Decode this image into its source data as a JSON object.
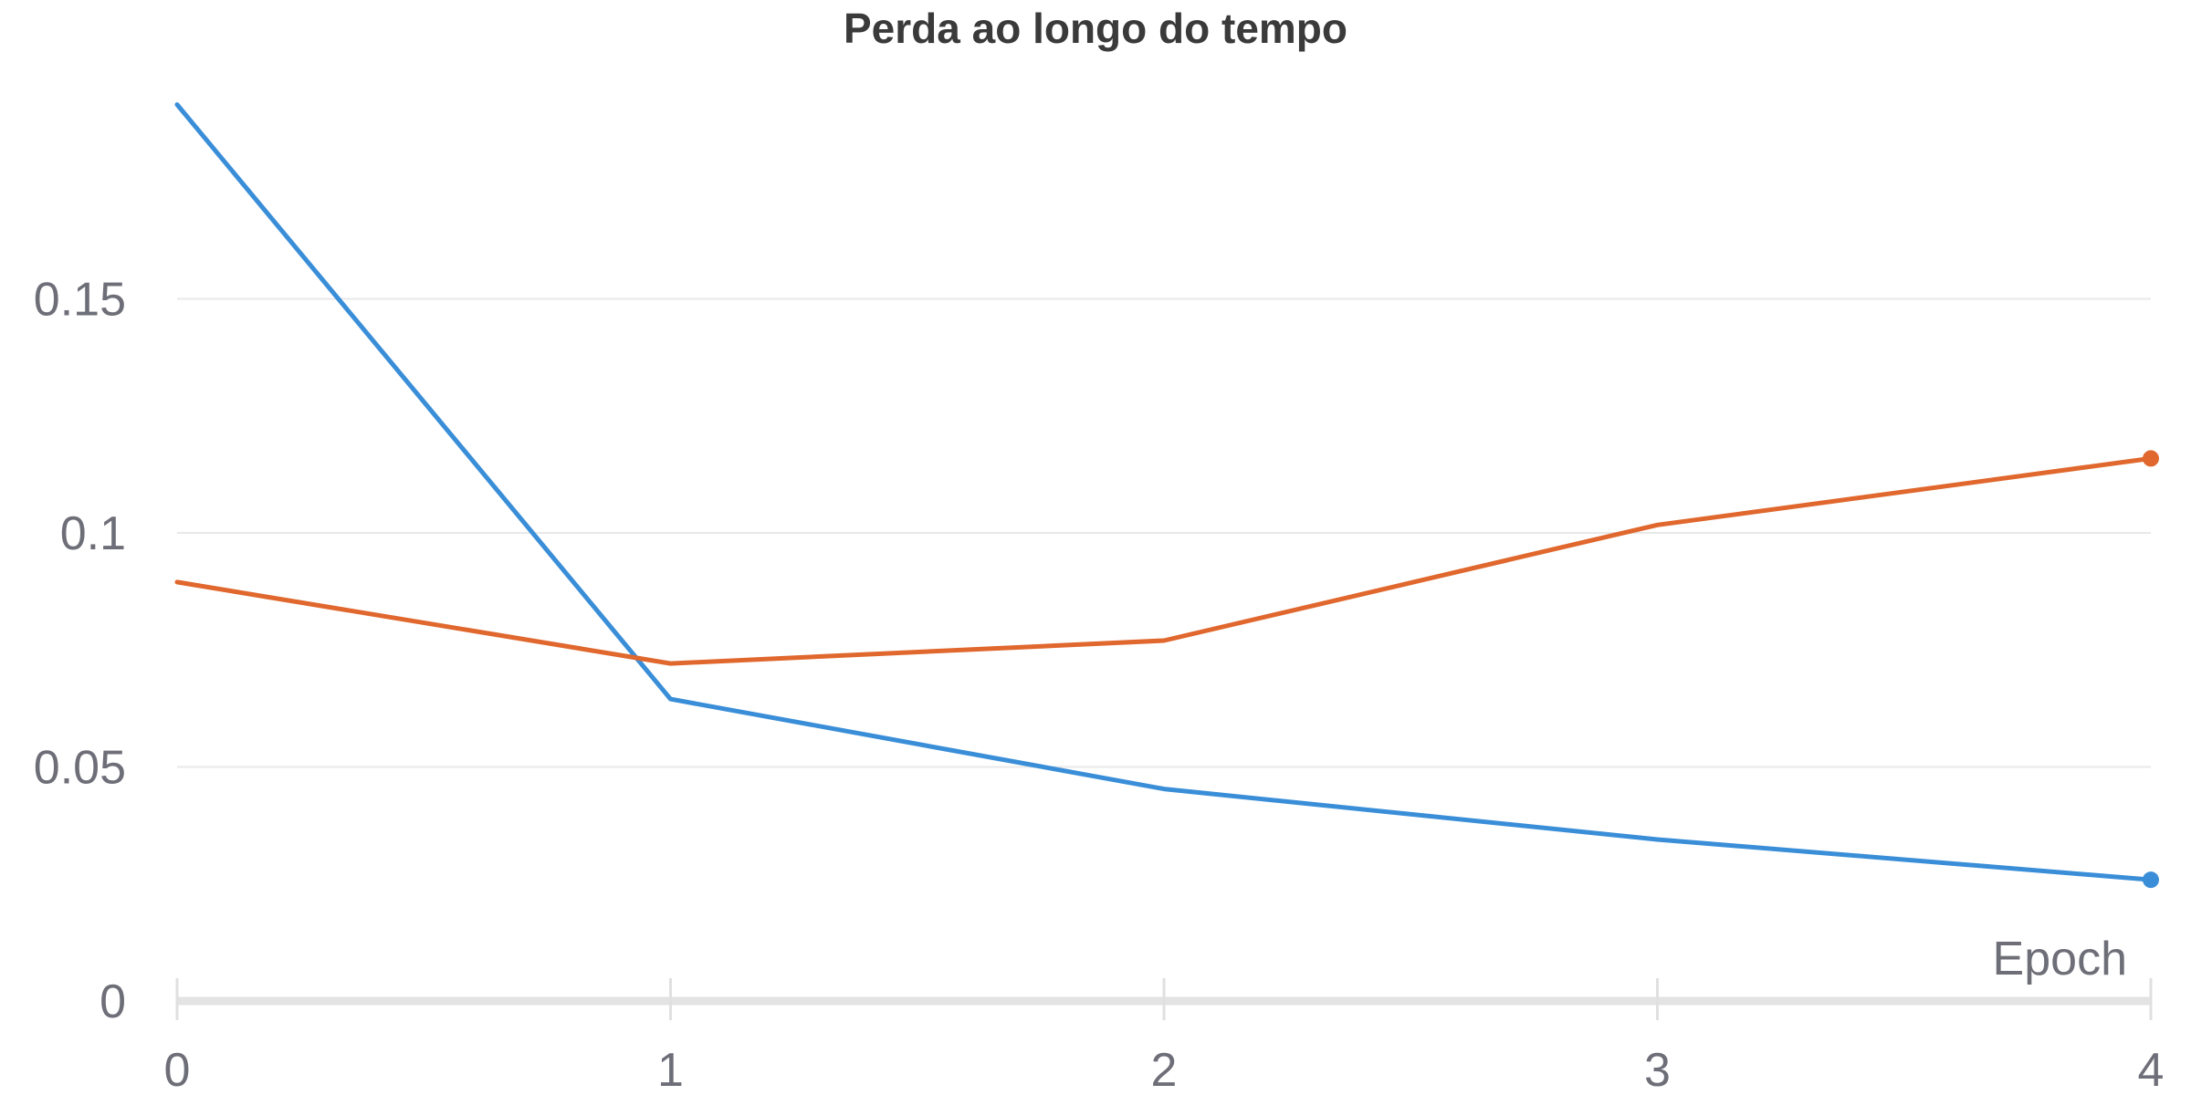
{
  "chart_data": {
    "type": "line",
    "title": "Perda ao longo do tempo",
    "xlabel": "Epoch",
    "ylabel": "",
    "x": [
      0,
      1,
      2,
      3,
      4
    ],
    "x_ticks": [
      "0",
      "1",
      "2",
      "3",
      "4"
    ],
    "y_ticks": [
      {
        "value": 0,
        "label": "0"
      },
      {
        "value": 0.05,
        "label": "0.05"
      },
      {
        "value": 0.1,
        "label": "0.1"
      },
      {
        "value": 0.15,
        "label": "0.15"
      }
    ],
    "xlim": [
      0,
      4
    ],
    "ylim": [
      0,
      0.19
    ],
    "grid": true,
    "legend": "none",
    "series": [
      {
        "values": [
          0.1915,
          0.0645,
          0.0453,
          0.0345,
          0.0259
        ],
        "color": "#3a8ed8",
        "end_marker": true
      },
      {
        "values": [
          0.0895,
          0.0721,
          0.077,
          0.1017,
          0.1159
        ],
        "color": "#e0672d",
        "end_marker": true
      }
    ]
  }
}
